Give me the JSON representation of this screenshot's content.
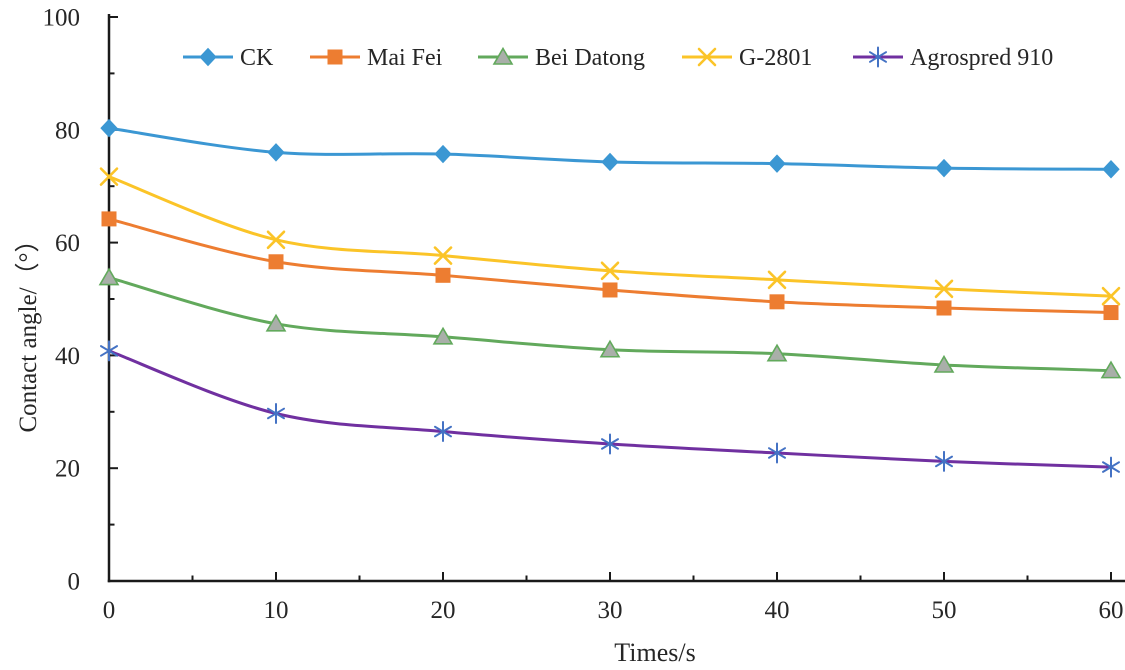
{
  "figure": {
    "background": "#ffffff",
    "axis_color": "#1a1a1a",
    "text_color": "#262626"
  },
  "chart_data": {
    "type": "line",
    "title": "",
    "xlabel": "Times/s",
    "ylabel": "Contact angle/（°）",
    "x": [
      0,
      10,
      20,
      30,
      40,
      50,
      60
    ],
    "xlim": [
      0,
      60
    ],
    "ylim": [
      0,
      100
    ],
    "x_major_ticks": [
      0,
      10,
      20,
      30,
      40,
      50,
      60
    ],
    "x_minor_ticks": [
      5,
      15,
      25,
      35,
      45,
      55
    ],
    "y_major_ticks": [
      0,
      20,
      40,
      60,
      80,
      100
    ],
    "y_minor_ticks": [
      10,
      30,
      50,
      70,
      90
    ],
    "grid": false,
    "line_smoothing": true,
    "legend": {
      "position": "top-inside",
      "orientation": "horizontal"
    },
    "series": [
      {
        "name": "CK",
        "color": "#3B97D3",
        "marker": "diamond",
        "marker_color": "#3B97D3",
        "marker_stroke": "#3B97D3",
        "values": [
          80.3,
          76.0,
          75.7,
          74.3,
          74.0,
          73.2,
          73.0
        ]
      },
      {
        "name": "Mai Fei",
        "color": "#ED7D31",
        "marker": "square",
        "marker_color": "#ED7D31",
        "marker_stroke": "#ED7D31",
        "values": [
          64.2,
          56.6,
          54.2,
          51.6,
          49.5,
          48.4,
          47.6
        ]
      },
      {
        "name": "Bei Datong",
        "color": "#62A95C",
        "marker": "triangle",
        "marker_color": "#A9AFA9",
        "marker_stroke": "#62A95C",
        "values": [
          53.8,
          45.6,
          43.3,
          41.0,
          40.3,
          38.3,
          37.3
        ]
      },
      {
        "name": "G-2801",
        "color": "#FBC428",
        "marker": "x",
        "marker_color": "#FBC428",
        "marker_stroke": "#FBC428",
        "values": [
          71.7,
          60.5,
          57.7,
          55.0,
          53.4,
          51.8,
          50.5
        ]
      },
      {
        "name": "Agrospred 910",
        "color": "#7030A0",
        "marker": "asterisk",
        "marker_color": "#4472C4",
        "marker_stroke": "#4472C4",
        "values": [
          40.8,
          29.7,
          26.5,
          24.3,
          22.7,
          21.2,
          20.2
        ]
      }
    ]
  }
}
